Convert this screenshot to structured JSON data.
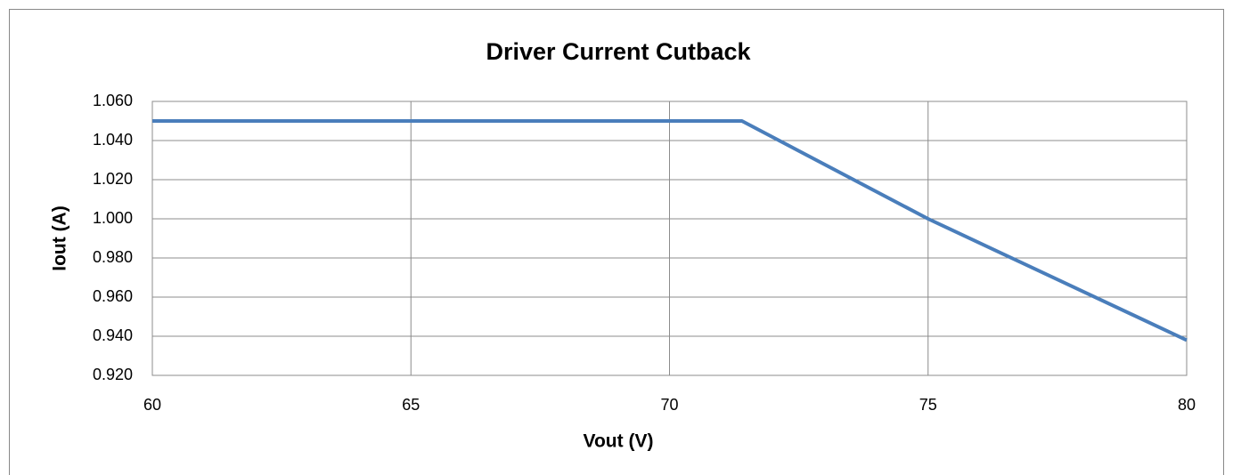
{
  "chart_data": {
    "type": "line",
    "title": "Driver Current Cutback",
    "x_label": "Vout (V)",
    "y_label": "Iout (A)",
    "x": [
      60,
      71.4,
      75,
      80
    ],
    "series": [
      {
        "name": "Iout",
        "color": "#4a7ebb",
        "values": [
          1.05,
          1.05,
          1.0,
          0.938
        ]
      }
    ],
    "xlim": [
      60,
      80
    ],
    "xticks": [
      60,
      65,
      70,
      75,
      80
    ],
    "ylim": [
      0.92,
      1.06
    ],
    "yticks": [
      {
        "value": 0.92,
        "label": "0.920"
      },
      {
        "value": 0.94,
        "label": "0.940"
      },
      {
        "value": 0.96,
        "label": "0.960"
      },
      {
        "value": 0.98,
        "label": "0.980"
      },
      {
        "value": 1.0,
        "label": "1.000"
      },
      {
        "value": 1.02,
        "label": "1.020"
      },
      {
        "value": 1.04,
        "label": "1.040"
      },
      {
        "value": 1.06,
        "label": "1.060"
      }
    ],
    "grid": true
  }
}
